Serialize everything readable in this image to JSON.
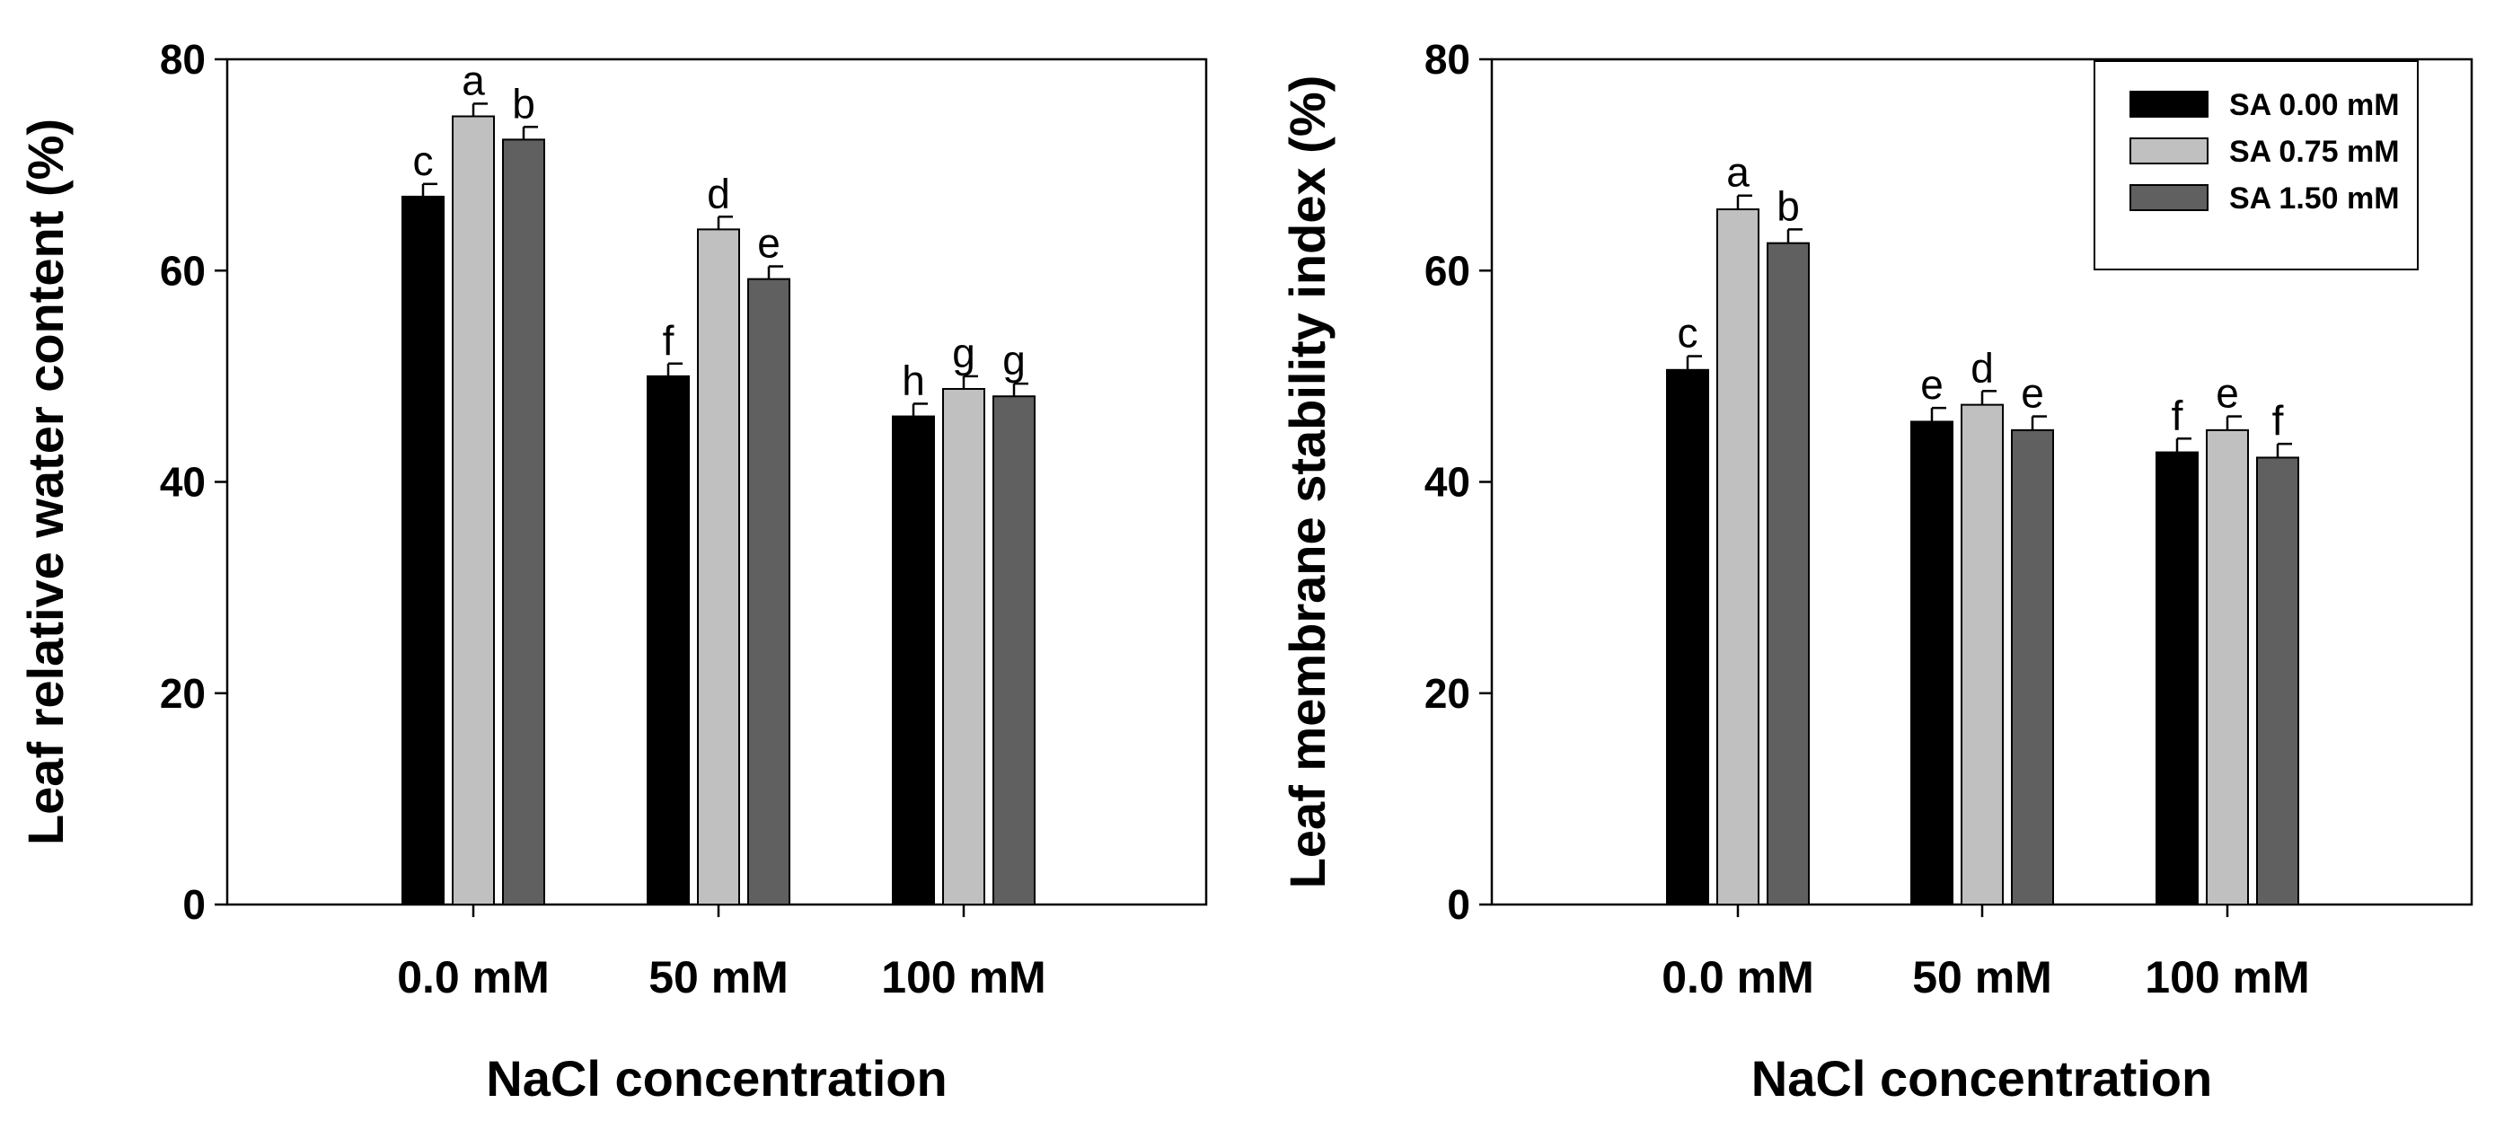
{
  "chart_data": [
    {
      "type": "bar",
      "categories": [
        "0.0 mM",
        "50 mM",
        "100 mM"
      ],
      "xlabel": "NaCl concentration",
      "ylabel": "Leaf relative water content (%)",
      "ylim": [
        0,
        80
      ],
      "yticks": [
        "0",
        "20",
        "40",
        "60",
        "80"
      ],
      "grid": false,
      "series": [
        {
          "name": "SA 0.00 mM",
          "color": "#000000",
          "values": [
            67.0,
            50.0,
            46.2
          ],
          "errors": [
            1.2,
            1.2,
            1.2
          ],
          "letters": [
            "c",
            "f",
            "h"
          ]
        },
        {
          "name": "SA 0.75 mM",
          "color": "#c0c0c0",
          "values": [
            74.6,
            63.9,
            48.8
          ],
          "errors": [
            1.2,
            1.2,
            1.2
          ],
          "letters": [
            "a",
            "d",
            "g"
          ]
        },
        {
          "name": "SA 1.50 mM",
          "color": "#606060",
          "values": [
            72.4,
            59.2,
            48.1
          ],
          "errors": [
            1.2,
            1.2,
            1.2
          ],
          "letters": [
            "b",
            "e",
            "g"
          ]
        }
      ]
    },
    {
      "type": "bar",
      "categories": [
        "0.0 mM",
        "50 mM",
        "100 mM"
      ],
      "xlabel": "NaCl concentration",
      "ylabel": "Leaf membrane stability index (%)",
      "ylim": [
        0,
        80
      ],
      "yticks": [
        "0",
        "20",
        "40",
        "60",
        "80"
      ],
      "grid": false,
      "legend": {
        "position": "top-right",
        "items": [
          "SA 0.00 mM",
          "SA 0.75 mM",
          "SA 1.50 mM"
        ]
      },
      "series": [
        {
          "name": "SA 0.00 mM",
          "color": "#000000",
          "values": [
            50.6,
            45.7,
            42.8
          ],
          "errors": [
            1.3,
            1.3,
            1.3
          ],
          "letters": [
            "c",
            "e",
            "f"
          ]
        },
        {
          "name": "SA 0.75 mM",
          "color": "#c0c0c0",
          "values": [
            65.8,
            47.3,
            44.9
          ],
          "errors": [
            1.3,
            1.3,
            1.3
          ],
          "letters": [
            "a",
            "d",
            "e"
          ]
        },
        {
          "name": "SA 1.50 mM",
          "color": "#606060",
          "values": [
            62.6,
            44.9,
            42.3
          ],
          "errors": [
            1.3,
            1.3,
            1.3
          ],
          "letters": [
            "b",
            "e",
            "f"
          ]
        }
      ]
    }
  ]
}
